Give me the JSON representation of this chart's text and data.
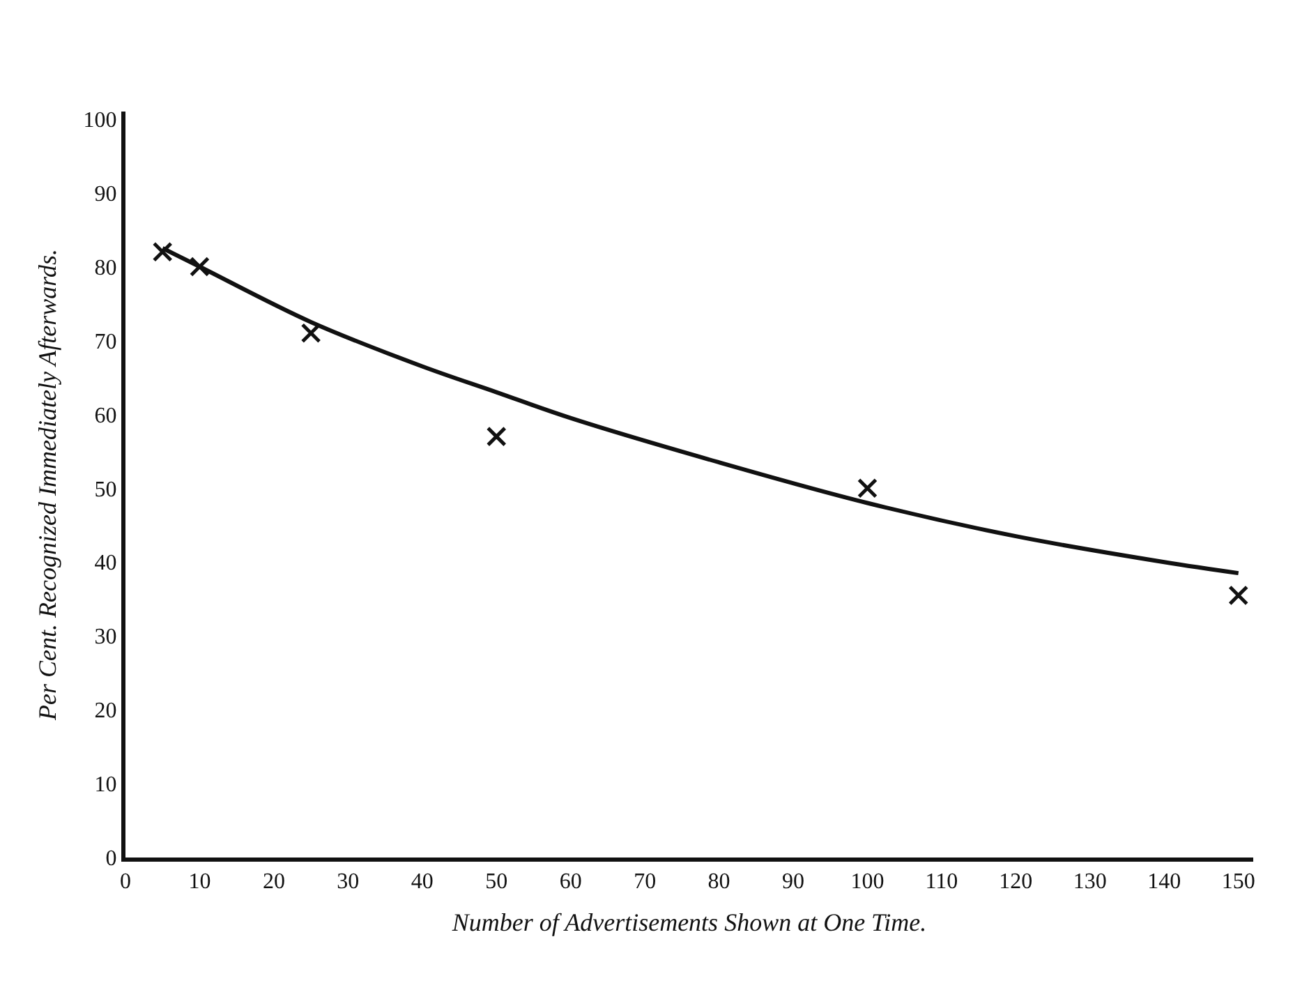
{
  "chart_data": {
    "type": "scatter",
    "xlabel": "Number of Advertisements Shown at One Time.",
    "ylabel": "Per Cent. Recognized Immediately Afterwards.",
    "xlim": [
      0,
      152
    ],
    "xticks": [
      0,
      10,
      20,
      30,
      40,
      50,
      60,
      70,
      80,
      90,
      100,
      110,
      120,
      130,
      140,
      150
    ],
    "ylim": [
      0,
      101
    ],
    "yticks": [
      0,
      10,
      20,
      30,
      40,
      50,
      60,
      70,
      80,
      90,
      100
    ],
    "series": [
      {
        "marker": "cross",
        "color": "#111111",
        "x": [
          5,
          10,
          25,
          50,
          100,
          150
        ],
        "values": [
          82,
          80,
          71,
          57,
          50,
          35.5
        ]
      },
      {
        "type": "line",
        "marker": "none",
        "color": "#111111",
        "x": [
          5,
          10,
          25,
          40,
          50,
          60,
          80,
          100,
          120,
          140,
          150
        ],
        "values": [
          82.5,
          80,
          72.5,
          66.5,
          63,
          59.5,
          53.5,
          48,
          43.5,
          40,
          38.5
        ]
      }
    ]
  }
}
